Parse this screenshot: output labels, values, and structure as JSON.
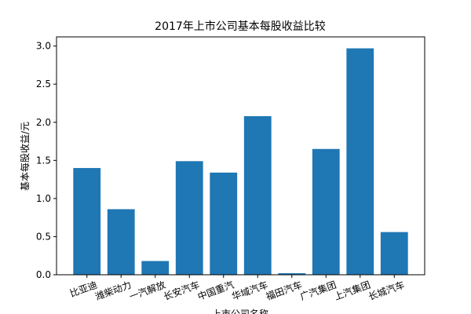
{
  "chart_data": {
    "type": "bar",
    "title": "2017年上市公司基本每股收益比较",
    "ylabel": "基本每股收益/元",
    "xlabel": "上市公司名称",
    "categories": [
      "比亚迪",
      "潍柴动力",
      "一汽解放",
      "长安汽车",
      "中国重汽",
      "华域汽车",
      "福田汽车",
      "广汽集团",
      "上汽集团",
      "长城汽车"
    ],
    "values": [
      1.4,
      0.86,
      0.18,
      1.49,
      1.34,
      2.08,
      0.02,
      1.65,
      2.97,
      0.56
    ],
    "color": "#1f77b4",
    "ylim": [
      0,
      3.12
    ],
    "yticks": [
      {
        "value": 0,
        "label": "0.0"
      },
      0.5,
      {
        "value": 1,
        "label": "1.0"
      },
      1.5,
      {
        "value": 2,
        "label": "2.0"
      },
      2.5,
      {
        "value": 3,
        "label": "3.0"
      }
    ]
  }
}
